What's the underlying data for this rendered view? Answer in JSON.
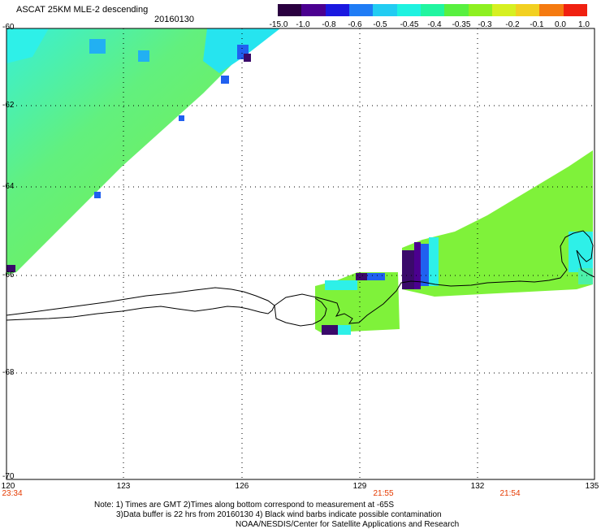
{
  "header": {
    "title": "ASCAT 25KM MLE-2 descending",
    "date": "20160130"
  },
  "colorbar": {
    "labels": [
      "-15.0",
      "-1.0",
      "-0.8",
      "-0.6",
      "-0.5",
      "-0.45",
      "-0.4",
      "-0.35",
      "-0.3",
      "-0.2",
      "-0.1",
      "0.0",
      "1.0"
    ],
    "colors": [
      "#2a0040",
      "#4b0090",
      "#1a18e0",
      "#1f7cf5",
      "#22ccf2",
      "#1ef2e0",
      "#20f5a0",
      "#58f040",
      "#8ef020",
      "#d6f020",
      "#f2d020",
      "#f57a10",
      "#f02010"
    ]
  },
  "axes": {
    "lat_labels": [
      "-60",
      "-62",
      "-64",
      "-66",
      "-68",
      "-70"
    ],
    "lon_labels": [
      "120",
      "123",
      "126",
      "129",
      "132",
      "135"
    ],
    "time_labels": [
      "23:34",
      "21:55",
      "21:54"
    ]
  },
  "notes": {
    "line1": "Note: 1) Times are GMT 2)Times along bottom correspond to measurement at -65S",
    "line2": "3)Data buffer is 22 hrs from 20160130 4) Black wind barbs indicate possible contamination",
    "line3": "NOAA/NESDIS/Center for Satellite Applications and Research"
  },
  "colors": {
    "swath_green": "#7ff23a",
    "swath_cyan": "#2ef0e8",
    "swath_blue": "#2060f0",
    "swath_purple": "#3a0a6a",
    "coastline": "#000000",
    "time_label": "#e53a00"
  }
}
